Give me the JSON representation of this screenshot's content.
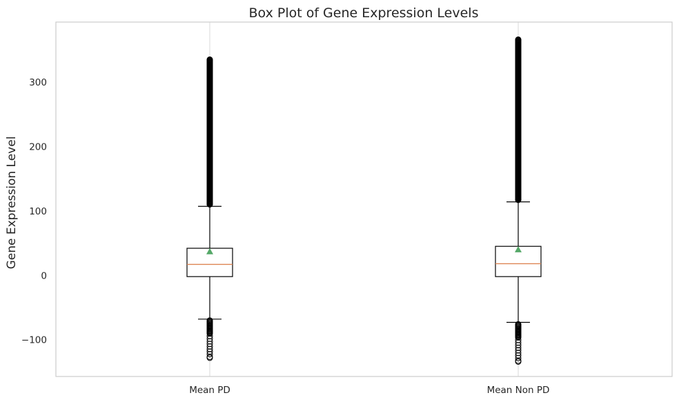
{
  "chart_data": {
    "type": "box",
    "title": "Box Plot of Gene Expression Levels",
    "xlabel": "",
    "ylabel": "Gene Expression Level",
    "ylim": [
      -157,
      393
    ],
    "yticks": [
      -100,
      0,
      100,
      200,
      300
    ],
    "grid": "vertical",
    "series": [
      {
        "category": "Mean PD",
        "whisker_low": -68,
        "q1": -2,
        "median": 17,
        "q3": 42,
        "whisker_high": 107,
        "mean": 37,
        "flier_low_range": [
          -128,
          -70
        ],
        "flier_high_range": [
          110,
          335
        ]
      },
      {
        "category": "Mean Non PD",
        "whisker_low": -73,
        "q1": -2,
        "median": 18,
        "q3": 45,
        "whisker_high": 114,
        "mean": 40,
        "flier_low_range": [
          -134,
          -76
        ],
        "flier_high_range": [
          117,
          366
        ]
      }
    ],
    "colors": {
      "box": "#000000",
      "median": "#dd8452",
      "mean": "#55a868",
      "grid": "#d9d9d9",
      "spine": "#cccccc"
    }
  }
}
